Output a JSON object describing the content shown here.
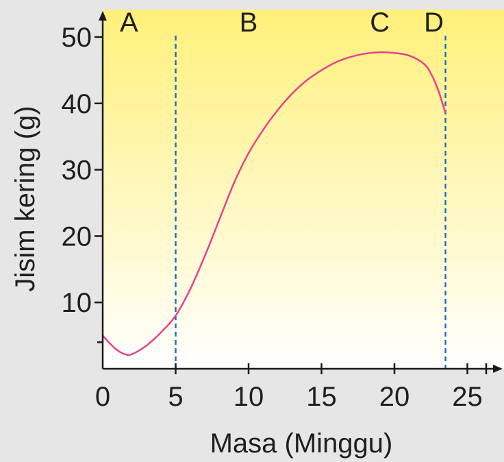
{
  "chart_data": {
    "type": "line",
    "title": "",
    "xlabel": "Masa (Minggu)",
    "ylabel": "Jisim kering (g)",
    "xlim": [
      0,
      27
    ],
    "ylim": [
      0,
      52
    ],
    "x_ticks": [
      0,
      5,
      10,
      15,
      20,
      25
    ],
    "y_ticks": [
      10,
      20,
      30,
      40,
      50
    ],
    "grid": false,
    "background": "yellow-to-white vertical gradient",
    "colors": {
      "line": "#e8408f",
      "divider": "#1f6fc2",
      "axis": "#1a1a1a",
      "gradient_top": "#fff07a",
      "gradient_bottom": "#ffffff",
      "page_bg": "#e6e6e6"
    },
    "series": [
      {
        "x": [
          0,
          0.5,
          1,
          1.5,
          2,
          3,
          4,
          5,
          6,
          7,
          8,
          9,
          10,
          11,
          12,
          13,
          14,
          15,
          16,
          17,
          18,
          19,
          20,
          21,
          22,
          22.5,
          23,
          23.5
        ],
        "values": [
          5,
          3.8,
          2.8,
          2.2,
          2.2,
          3.5,
          5.5,
          8,
          12,
          17,
          22.5,
          28,
          32.5,
          36,
          39,
          41.5,
          43.5,
          45,
          46.2,
          47,
          47.5,
          47.7,
          47.6,
          47.2,
          46,
          44.5,
          42,
          38.5
        ]
      }
    ],
    "dividers": [
      {
        "x": 5
      },
      {
        "x": 23.5
      }
    ],
    "regions": [
      {
        "label": "A",
        "x": 1.8
      },
      {
        "label": "B",
        "x": 10
      },
      {
        "label": "C",
        "x": 19
      },
      {
        "label": "D",
        "x": 22.7
      }
    ]
  }
}
